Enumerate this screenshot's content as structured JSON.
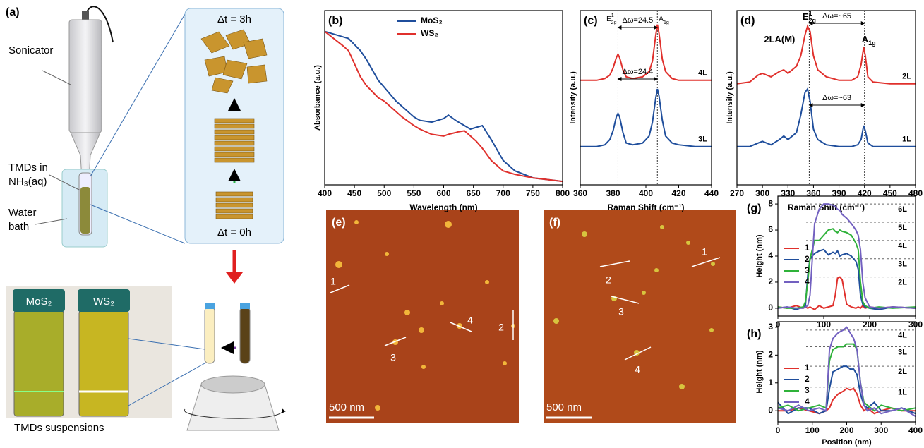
{
  "panel_a": {
    "label": "(a)",
    "sonicator": "Sonicator",
    "tmds_line1": "TMDs in",
    "tmds_line2": "NH₃(aq)",
    "bath_line1": "Water",
    "bath_line2": "bath",
    "dt_top": "Δt = 3h",
    "dt_bottom": "Δt = 0h",
    "vials": [
      "MoS₂",
      "WS₂"
    ],
    "caption": "TMDs suspensions"
  },
  "afm": [
    {
      "label": "(e)",
      "scale_bar": "500 nm",
      "profiles": [
        "1",
        "2",
        "3",
        "4"
      ]
    },
    {
      "label": "(f)",
      "scale_bar": "500 nm",
      "profiles": [
        "1",
        "2",
        "3",
        "4"
      ]
    }
  ],
  "chart_data": [
    {
      "type": "line",
      "label": "(b)",
      "xlabel": "Wavelength (nm)",
      "ylabel": "Absorbance (a.u.)",
      "x": [
        400,
        430,
        440,
        460,
        470,
        490,
        500,
        520,
        530,
        550,
        560,
        580,
        590,
        600,
        608,
        620,
        625,
        635,
        645,
        655,
        665,
        680,
        700,
        720,
        750,
        800
      ],
      "xlim": [
        400,
        800
      ],
      "xticks": [
        400,
        450,
        500,
        550,
        600,
        650,
        700,
        750,
        800
      ],
      "ylim": [
        0,
        1
      ],
      "legend": "top-center",
      "series": [
        {
          "name": "MoS₂",
          "color": "#1f4e9c",
          "values": [
            0.88,
            0.85,
            0.84,
            0.77,
            0.72,
            0.6,
            0.56,
            0.48,
            0.45,
            0.39,
            0.37,
            0.36,
            0.37,
            0.38,
            0.4,
            0.37,
            0.36,
            0.34,
            0.32,
            0.33,
            0.34,
            0.26,
            0.14,
            0.08,
            0.04,
            0.02
          ]
        },
        {
          "name": "WS₂",
          "color": "#e0302c",
          "values": [
            0.88,
            0.8,
            0.77,
            0.62,
            0.57,
            0.5,
            0.48,
            0.42,
            0.39,
            0.34,
            0.32,
            0.29,
            0.285,
            0.28,
            0.29,
            0.3,
            0.305,
            0.31,
            0.28,
            0.25,
            0.21,
            0.14,
            0.08,
            0.06,
            0.04,
            0.02
          ]
        }
      ]
    },
    {
      "type": "line",
      "label": "(c)",
      "xlabel": "Raman Shift (cm⁻¹)",
      "ylabel": "Intensity (a.u.)",
      "x": [
        360,
        370,
        375,
        378,
        380,
        382,
        383,
        384,
        386,
        388,
        392,
        398,
        402,
        404,
        406,
        407,
        408,
        410,
        412,
        416,
        420,
        430,
        440
      ],
      "xlim": [
        360,
        440
      ],
      "xticks": [
        360,
        380,
        400,
        420,
        440
      ],
      "ylim": [
        0,
        1
      ],
      "series": [
        {
          "name": "4L",
          "color": "#e0302c",
          "values": [
            0.6,
            0.6,
            0.61,
            0.63,
            0.67,
            0.73,
            0.75,
            0.73,
            0.66,
            0.62,
            0.61,
            0.62,
            0.65,
            0.71,
            0.86,
            0.92,
            0.87,
            0.72,
            0.65,
            0.61,
            0.6,
            0.6,
            0.6
          ]
        },
        {
          "name": "3L",
          "color": "#1f4e9c",
          "values": [
            0.22,
            0.22,
            0.23,
            0.26,
            0.31,
            0.39,
            0.41,
            0.39,
            0.3,
            0.24,
            0.23,
            0.24,
            0.28,
            0.36,
            0.5,
            0.55,
            0.51,
            0.37,
            0.28,
            0.24,
            0.23,
            0.22,
            0.22
          ]
        }
      ],
      "vlines": [
        383,
        407
      ],
      "peak_labels": [
        {
          "text": "E",
          "sub": "2g",
          "sup": "1"
        },
        {
          "text": "A",
          "sub": "1g"
        }
      ],
      "delta_labels": [
        "Δω=24.5",
        "Δω=24.4"
      ]
    },
    {
      "type": "line",
      "label": "(d)",
      "xlabel": "Raman Shift (cm⁻¹)",
      "ylabel": "Intensity (a.u.)",
      "x": [
        270,
        285,
        295,
        300,
        310,
        320,
        325,
        330,
        340,
        345,
        350,
        353,
        356,
        360,
        365,
        375,
        390,
        405,
        412,
        416,
        419,
        421,
        424,
        430,
        450,
        480
      ],
      "xlim": [
        270,
        480
      ],
      "xticks": [
        270,
        300,
        330,
        360,
        390,
        420,
        450,
        480
      ],
      "ylim": [
        0,
        1
      ],
      "series": [
        {
          "name": "2L",
          "color": "#e0302c",
          "values": [
            0.58,
            0.59,
            0.63,
            0.64,
            0.62,
            0.65,
            0.66,
            0.64,
            0.68,
            0.74,
            0.86,
            0.91,
            0.88,
            0.74,
            0.66,
            0.62,
            0.6,
            0.6,
            0.62,
            0.69,
            0.79,
            0.74,
            0.62,
            0.59,
            0.58,
            0.58
          ]
        },
        {
          "name": "1L",
          "color": "#1f4e9c",
          "values": [
            0.22,
            0.22,
            0.24,
            0.25,
            0.23,
            0.26,
            0.28,
            0.26,
            0.3,
            0.4,
            0.53,
            0.55,
            0.48,
            0.32,
            0.26,
            0.23,
            0.22,
            0.22,
            0.23,
            0.26,
            0.34,
            0.31,
            0.24,
            0.22,
            0.22,
            0.22
          ]
        }
      ],
      "vlines": [
        355,
        420
      ],
      "peak_labels": [
        {
          "text": "2LA(M)"
        },
        {
          "text": "E",
          "sub": "2g",
          "sup": "1"
        },
        {
          "text": "A",
          "sub": "1g"
        }
      ],
      "delta_labels": [
        "Δω=~65",
        "Δω=~63"
      ]
    },
    {
      "type": "line",
      "label": "(g)",
      "ylabel": "Height (nm)",
      "x": [
        0,
        20,
        40,
        55,
        60,
        65,
        70,
        80,
        90,
        100,
        110,
        120,
        125,
        130,
        135,
        140,
        150,
        160,
        170,
        175,
        180,
        185,
        190,
        200,
        220,
        250,
        300
      ],
      "xlim": [
        0,
        300
      ],
      "xticks": [
        0,
        100,
        200,
        300
      ],
      "ylim": [
        -0.6,
        8.6
      ],
      "yticks": [
        0,
        2,
        4,
        6,
        8
      ],
      "legend": "left",
      "series": [
        {
          "name": "1",
          "color": "#e0302c",
          "values": [
            0.1,
            0,
            0.2,
            0,
            0.1,
            0,
            0.1,
            -0.1,
            0.2,
            0,
            0.1,
            0.2,
            1.0,
            2.3,
            2.4,
            2.2,
            0.3,
            0.1,
            0,
            0.1,
            0,
            0.2,
            0,
            0.1,
            0,
            0.1,
            0
          ]
        },
        {
          "name": "2",
          "color": "#1f4e9c",
          "values": [
            0,
            0.1,
            -0.1,
            0.1,
            0.2,
            2.5,
            3.8,
            4.2,
            4.4,
            4.5,
            4.1,
            4.3,
            4.2,
            4.4,
            4.0,
            4.1,
            4.2,
            4.0,
            3.6,
            3.0,
            1.0,
            0.3,
            0.1,
            0,
            -0.1,
            0.1,
            0
          ]
        },
        {
          "name": "3",
          "color": "#2fb23a",
          "values": [
            0.1,
            0,
            0,
            0.1,
            0.5,
            2.0,
            3.8,
            5.2,
            5.2,
            5.6,
            6.0,
            6.1,
            5.9,
            5.8,
            6.0,
            5.9,
            5.8,
            5.6,
            5.0,
            4.5,
            2.0,
            0.5,
            0.2,
            0,
            0.1,
            0,
            0.1
          ]
        },
        {
          "name": "4",
          "color": "#7260c0",
          "values": [
            0,
            0.1,
            0,
            0,
            0.1,
            0.2,
            1.0,
            6.5,
            7.6,
            8.0,
            8.0,
            7.9,
            7.8,
            7.6,
            7.5,
            7.2,
            6.9,
            6.5,
            6.0,
            5.6,
            4.5,
            2.0,
            0.8,
            0.1,
            0,
            0.1,
            0
          ]
        }
      ],
      "hlines": [
        8.0,
        6.6,
        5.2,
        3.8,
        2.4
      ],
      "hline_labels": [
        "6L",
        "5L",
        "4L",
        "3L",
        "2L"
      ]
    },
    {
      "type": "line",
      "label": "(h)",
      "xlabel": "Position (nm)",
      "ylabel": "Height (nm)",
      "x": [
        0,
        30,
        60,
        90,
        120,
        140,
        150,
        160,
        175,
        190,
        200,
        210,
        220,
        230,
        240,
        250,
        260,
        280,
        300,
        330,
        360,
        400
      ],
      "xlim": [
        0,
        400
      ],
      "xticks": [
        0,
        100,
        200,
        300,
        400
      ],
      "ylim": [
        -0.4,
        3.2
      ],
      "yticks": [
        0,
        1,
        2,
        3
      ],
      "legend": "left",
      "series": [
        {
          "name": "1",
          "color": "#e0302c",
          "values": [
            0,
            0,
            0.1,
            0,
            -0.1,
            0,
            0.1,
            0.4,
            0.6,
            0.7,
            0.8,
            0.75,
            0.8,
            0.6,
            0.2,
            0,
            0.1,
            -0.1,
            0,
            0.1,
            0,
            0
          ]
        },
        {
          "name": "2",
          "color": "#1f4e9c",
          "values": [
            0.3,
            -0.1,
            0.1,
            0.1,
            -0.1,
            0,
            0.8,
            1.4,
            1.5,
            1.6,
            1.6,
            1.5,
            1.5,
            1.3,
            0.6,
            0.2,
            0.1,
            0.3,
            0,
            0,
            0.1,
            -0.1
          ]
        },
        {
          "name": "3",
          "color": "#2fb23a",
          "values": [
            0.1,
            0.2,
            0,
            0.1,
            0.2,
            0.1,
            1.8,
            2.2,
            2.3,
            2.3,
            2.4,
            2.4,
            2.4,
            2.2,
            1.0,
            0.3,
            0.2,
            0,
            0.2,
            0.1,
            0,
            0.1
          ]
        },
        {
          "name": "4",
          "color": "#7260c0",
          "values": [
            0.1,
            0,
            0.2,
            0,
            0.1,
            0,
            2.2,
            2.6,
            2.8,
            2.9,
            3.0,
            2.8,
            2.6,
            2.2,
            1.0,
            0.2,
            0,
            0.1,
            -0.1,
            0,
            0.1,
            -0.2
          ]
        }
      ],
      "hlines": [
        2.9,
        2.3,
        1.6,
        0.85
      ],
      "hline_labels": [
        "4L",
        "3L",
        "2L",
        "1L"
      ]
    }
  ]
}
